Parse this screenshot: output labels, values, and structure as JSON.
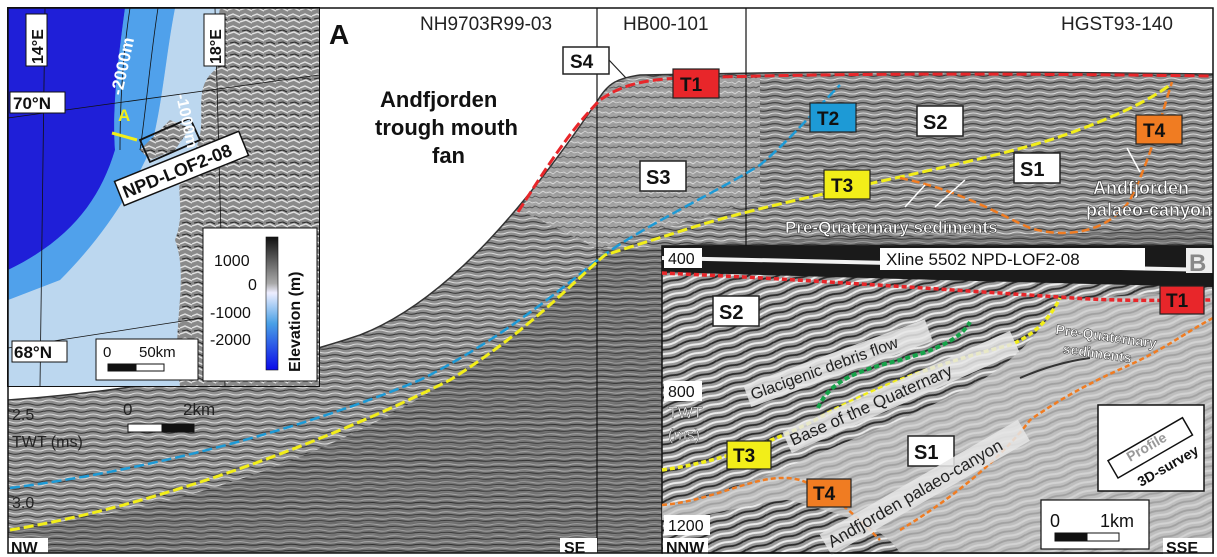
{
  "panel_a": {
    "letter": "A",
    "line_names": [
      "NH9703R99-03",
      "HB00-101",
      "HGST93-140"
    ],
    "title_lines": [
      "Andfjorden",
      "trough mouth",
      "fan"
    ],
    "surfaces": {
      "t1": "T1",
      "t2": "T2",
      "t3": "T3",
      "t4": "T4"
    },
    "units": {
      "s1": "S1",
      "s2": "S2",
      "s3": "S3",
      "s4": "S4"
    },
    "canyon_lines": [
      "Andfjorden",
      "palaeo-canyon"
    ],
    "prequat": "Pre-Quaternary sediments",
    "twt_top": "2.5",
    "twt_label": "TWT (ms)",
    "twt_bottom": "3.0",
    "scale": {
      "zero": "0",
      "end": "2km"
    },
    "corners": {
      "nw": "NW",
      "se": "SE"
    }
  },
  "inset_map": {
    "lon_labels": [
      "14°E",
      "18°E"
    ],
    "lat_labels": [
      "70°N",
      "68°N"
    ],
    "contours": [
      "-2000m",
      "-1000m"
    ],
    "profile_marker": "A",
    "survey_label": "NPD-LOF2-08",
    "legend_values": [
      "1000",
      "0",
      "-1000",
      "-2000"
    ],
    "legend_title": "Elevation (m)",
    "scale": {
      "zero": "0",
      "end": "50km"
    }
  },
  "panel_b": {
    "letter": "B",
    "title": "Xline 5502 NPD-LOF2-08",
    "twt_ticks": [
      "400",
      "800",
      "1200"
    ],
    "twt_label_lines": [
      "TWT",
      "(ms)"
    ],
    "units": {
      "s1": "S1",
      "s2": "S2"
    },
    "surfaces": {
      "t1": "T1",
      "t3": "T3",
      "t4": "T4"
    },
    "debris_flow": "Glacigenic debris flow",
    "base_quaternary": "Base of the Quaternary",
    "palaeo_canyon": "Andfjorden palaeo-canyon",
    "prequat_lines": [
      "Pre-Quaternary",
      "sediments"
    ],
    "location_box": {
      "profile": "Profile",
      "survey": "3D-survey"
    },
    "scale": {
      "zero": "0",
      "end": "1km"
    },
    "corners": {
      "nnw": "NNW",
      "sse": "SSE"
    }
  },
  "colors": {
    "t1": "#e8262a",
    "t2": "#1d9ad6",
    "t3": "#f2ee19",
    "t4": "#f07c22",
    "debris": "#17a34a",
    "map_deep": "#1f1fd8",
    "map_mid": "#2b8be6",
    "map_shelf": "#bcd7ef"
  }
}
